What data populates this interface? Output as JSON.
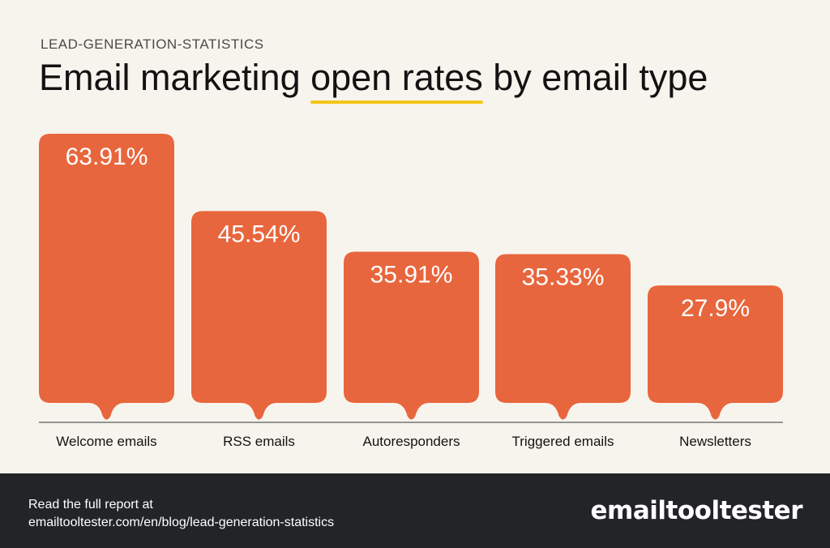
{
  "header": {
    "kicker": "LEAD-GENERATION-STATISTICS",
    "title_pre": "Email marketing ",
    "title_highlight": "open rates",
    "title_post": " by email type"
  },
  "colors": {
    "bar": "#e8663d",
    "background": "#f7f4ee",
    "highlight": "#f5c518",
    "footer": "#222428"
  },
  "chart_data": {
    "type": "bar",
    "categories": [
      "Welcome emails",
      "RSS emails",
      "Autoresponders",
      "Triggered emails",
      "Newsletters"
    ],
    "values": [
      63.91,
      45.54,
      35.91,
      35.33,
      27.9
    ],
    "data_labels": [
      "63.91%",
      "45.54%",
      "35.91%",
      "35.33%",
      "27.9%"
    ],
    "title": "Email marketing open rates by email type",
    "xlabel": "",
    "ylabel": "",
    "ylim": [
      0,
      63.91
    ],
    "grid": false,
    "legend": "none"
  },
  "footer": {
    "line1": "Read the full report at",
    "line2": "emailtooltester.com/en/blog/lead-generation-statistics",
    "logo": "emailtooltester",
    "logo_icon": "oo-logo-glyph"
  }
}
